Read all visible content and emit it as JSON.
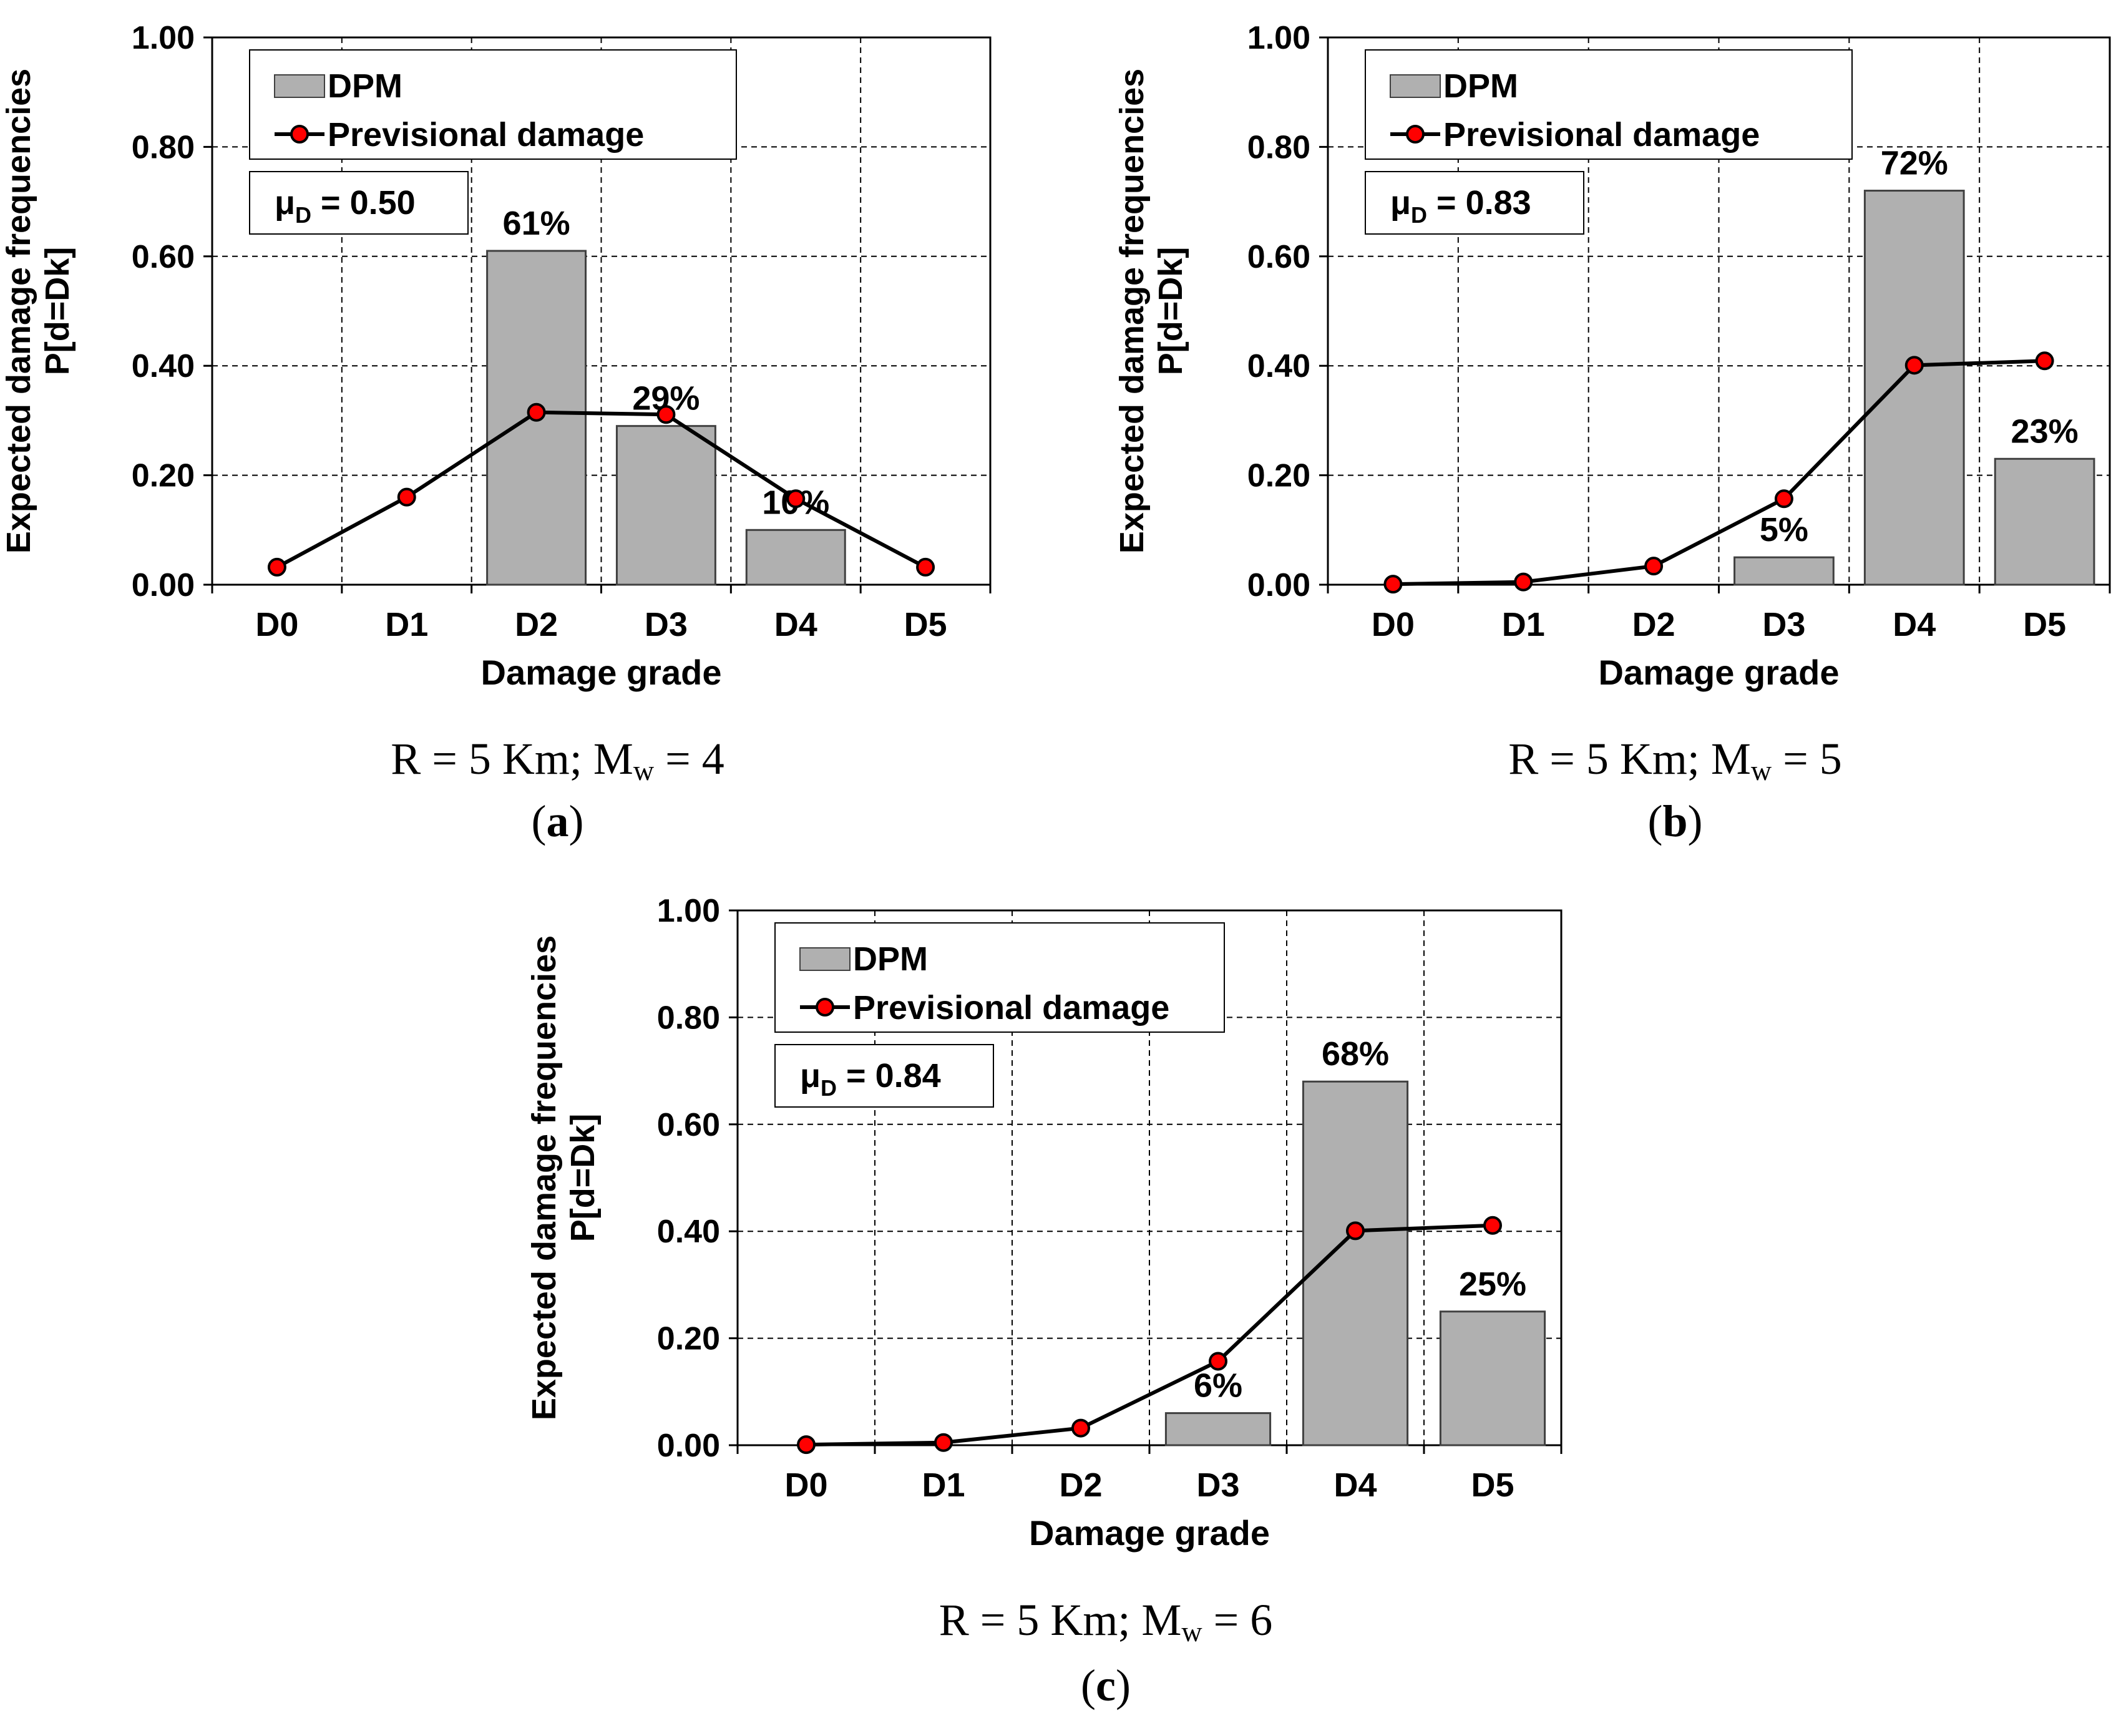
{
  "chart_data": [
    {
      "type": "bar",
      "panel_label": "a",
      "categories": [
        "D0",
        "D1",
        "D2",
        "D3",
        "D4",
        "D5"
      ],
      "series": [
        {
          "name": "DPM",
          "type": "bar",
          "values": [
            0,
            0,
            0.61,
            0.29,
            0.1,
            0
          ],
          "labels": [
            "",
            "",
            "61%",
            "29%",
            "10%",
            ""
          ]
        },
        {
          "name": "Previsional damage",
          "type": "line",
          "values": [
            0.032,
            0.16,
            0.315,
            0.311,
            0.157,
            0.032
          ]
        }
      ],
      "mu": {
        "prefix": "μ",
        "sub": "D",
        "value": " = 0.50"
      },
      "xlabel": "Damage grade",
      "ylabel": [
        "Expected damage frequencies",
        "P[d=Dk]"
      ],
      "ylim": [
        0,
        1.0
      ],
      "yticks": [
        "0.00",
        "0.20",
        "0.40",
        "0.60",
        "0.80",
        "1.00"
      ],
      "grid": true,
      "legend": "top-left",
      "caption": {
        "pre": "R = 5 Km; M",
        "sub": "w",
        "post": " = 4"
      }
    },
    {
      "type": "bar",
      "panel_label": "b",
      "categories": [
        "D0",
        "D1",
        "D2",
        "D3",
        "D4",
        "D5"
      ],
      "series": [
        {
          "name": "DPM",
          "type": "bar",
          "values": [
            0,
            0,
            0,
            0.05,
            0.72,
            0.23
          ],
          "labels": [
            "",
            "",
            "",
            "5%",
            "72%",
            "23%"
          ]
        },
        {
          "name": "Previsional damage",
          "type": "line",
          "values": [
            0.001,
            0.005,
            0.034,
            0.157,
            0.401,
            0.409
          ]
        }
      ],
      "mu": {
        "prefix": "μ",
        "sub": "D",
        "value": " = 0.83"
      },
      "xlabel": "Damage grade",
      "ylabel": [
        "Expected damage frequencies",
        "P[d=Dk]"
      ],
      "ylim": [
        0,
        1.0
      ],
      "yticks": [
        "0.00",
        "0.20",
        "0.40",
        "0.60",
        "0.80",
        "1.00"
      ],
      "grid": true,
      "legend": "top-left",
      "caption": {
        "pre": "R = 5 Km; M",
        "sub": "w",
        "post": " = 5"
      }
    },
    {
      "type": "bar",
      "panel_label": "c",
      "categories": [
        "D0",
        "D1",
        "D2",
        "D3",
        "D4",
        "D5"
      ],
      "series": [
        {
          "name": "DPM",
          "type": "bar",
          "values": [
            0,
            0,
            0,
            0.06,
            0.68,
            0.25
          ],
          "labels": [
            "",
            "",
            "",
            "6%",
            "68%",
            "25%"
          ]
        },
        {
          "name": "Previsional damage",
          "type": "line",
          "values": [
            0.001,
            0.005,
            0.032,
            0.157,
            0.401,
            0.411
          ]
        }
      ],
      "mu": {
        "prefix": "μ",
        "sub": "D",
        "value": " = 0.84"
      },
      "xlabel": "Damage grade",
      "ylabel": [
        "Expected damage frequencies",
        "P[d=Dk]"
      ],
      "ylim": [
        0,
        1.0
      ],
      "yticks": [
        "0.00",
        "0.20",
        "0.40",
        "0.60",
        "0.80",
        "1.00"
      ],
      "grid": true,
      "legend": "top-left",
      "caption": {
        "pre": "R = 5 Km; M",
        "sub": "w",
        "post": " = 6"
      }
    }
  ],
  "colors": {
    "bar": "#b0b0b0",
    "bar_stroke": "#404040",
    "line": "#000000",
    "marker": "#ff0000",
    "grid": "#000000"
  }
}
